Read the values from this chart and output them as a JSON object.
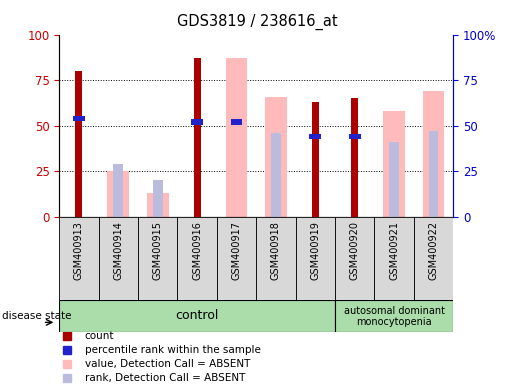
{
  "title": "GDS3819 / 238616_at",
  "samples": [
    "GSM400913",
    "GSM400914",
    "GSM400915",
    "GSM400916",
    "GSM400917",
    "GSM400918",
    "GSM400919",
    "GSM400920",
    "GSM400921",
    "GSM400922"
  ],
  "count": [
    80,
    0,
    0,
    87,
    0,
    0,
    63,
    65,
    0,
    0
  ],
  "percentile_rank": [
    54,
    0,
    0,
    52,
    52,
    0,
    44,
    44,
    0,
    0
  ],
  "value_absent": [
    0,
    25,
    13,
    0,
    87,
    66,
    0,
    0,
    58,
    69
  ],
  "rank_absent": [
    0,
    29,
    20,
    0,
    0,
    46,
    0,
    0,
    41,
    47
  ],
  "count_color": "#aa0000",
  "percentile_color": "#2222cc",
  "value_absent_color": "#ffbbbb",
  "rank_absent_color": "#bbbbdd",
  "control_n": 7,
  "disease_n": 3,
  "control_label": "control",
  "disease_label_line1": "autosomal dominant",
  "disease_label_line2": "monocytopenia",
  "yticks": [
    0,
    25,
    50,
    75,
    100
  ],
  "ytick_labels_left": [
    "0",
    "25",
    "50",
    "75",
    "100"
  ],
  "ytick_labels_right": [
    "0",
    "25",
    "50",
    "75",
    "100%"
  ],
  "tick_color_left": "#cc0000",
  "tick_color_right": "#0000cc",
  "legend_items": [
    {
      "label": "count",
      "color": "#aa0000"
    },
    {
      "label": "percentile rank within the sample",
      "color": "#2222cc"
    },
    {
      "label": "value, Detection Call = ABSENT",
      "color": "#ffbbbb"
    },
    {
      "label": "rank, Detection Call = ABSENT",
      "color": "#bbbbdd"
    }
  ]
}
